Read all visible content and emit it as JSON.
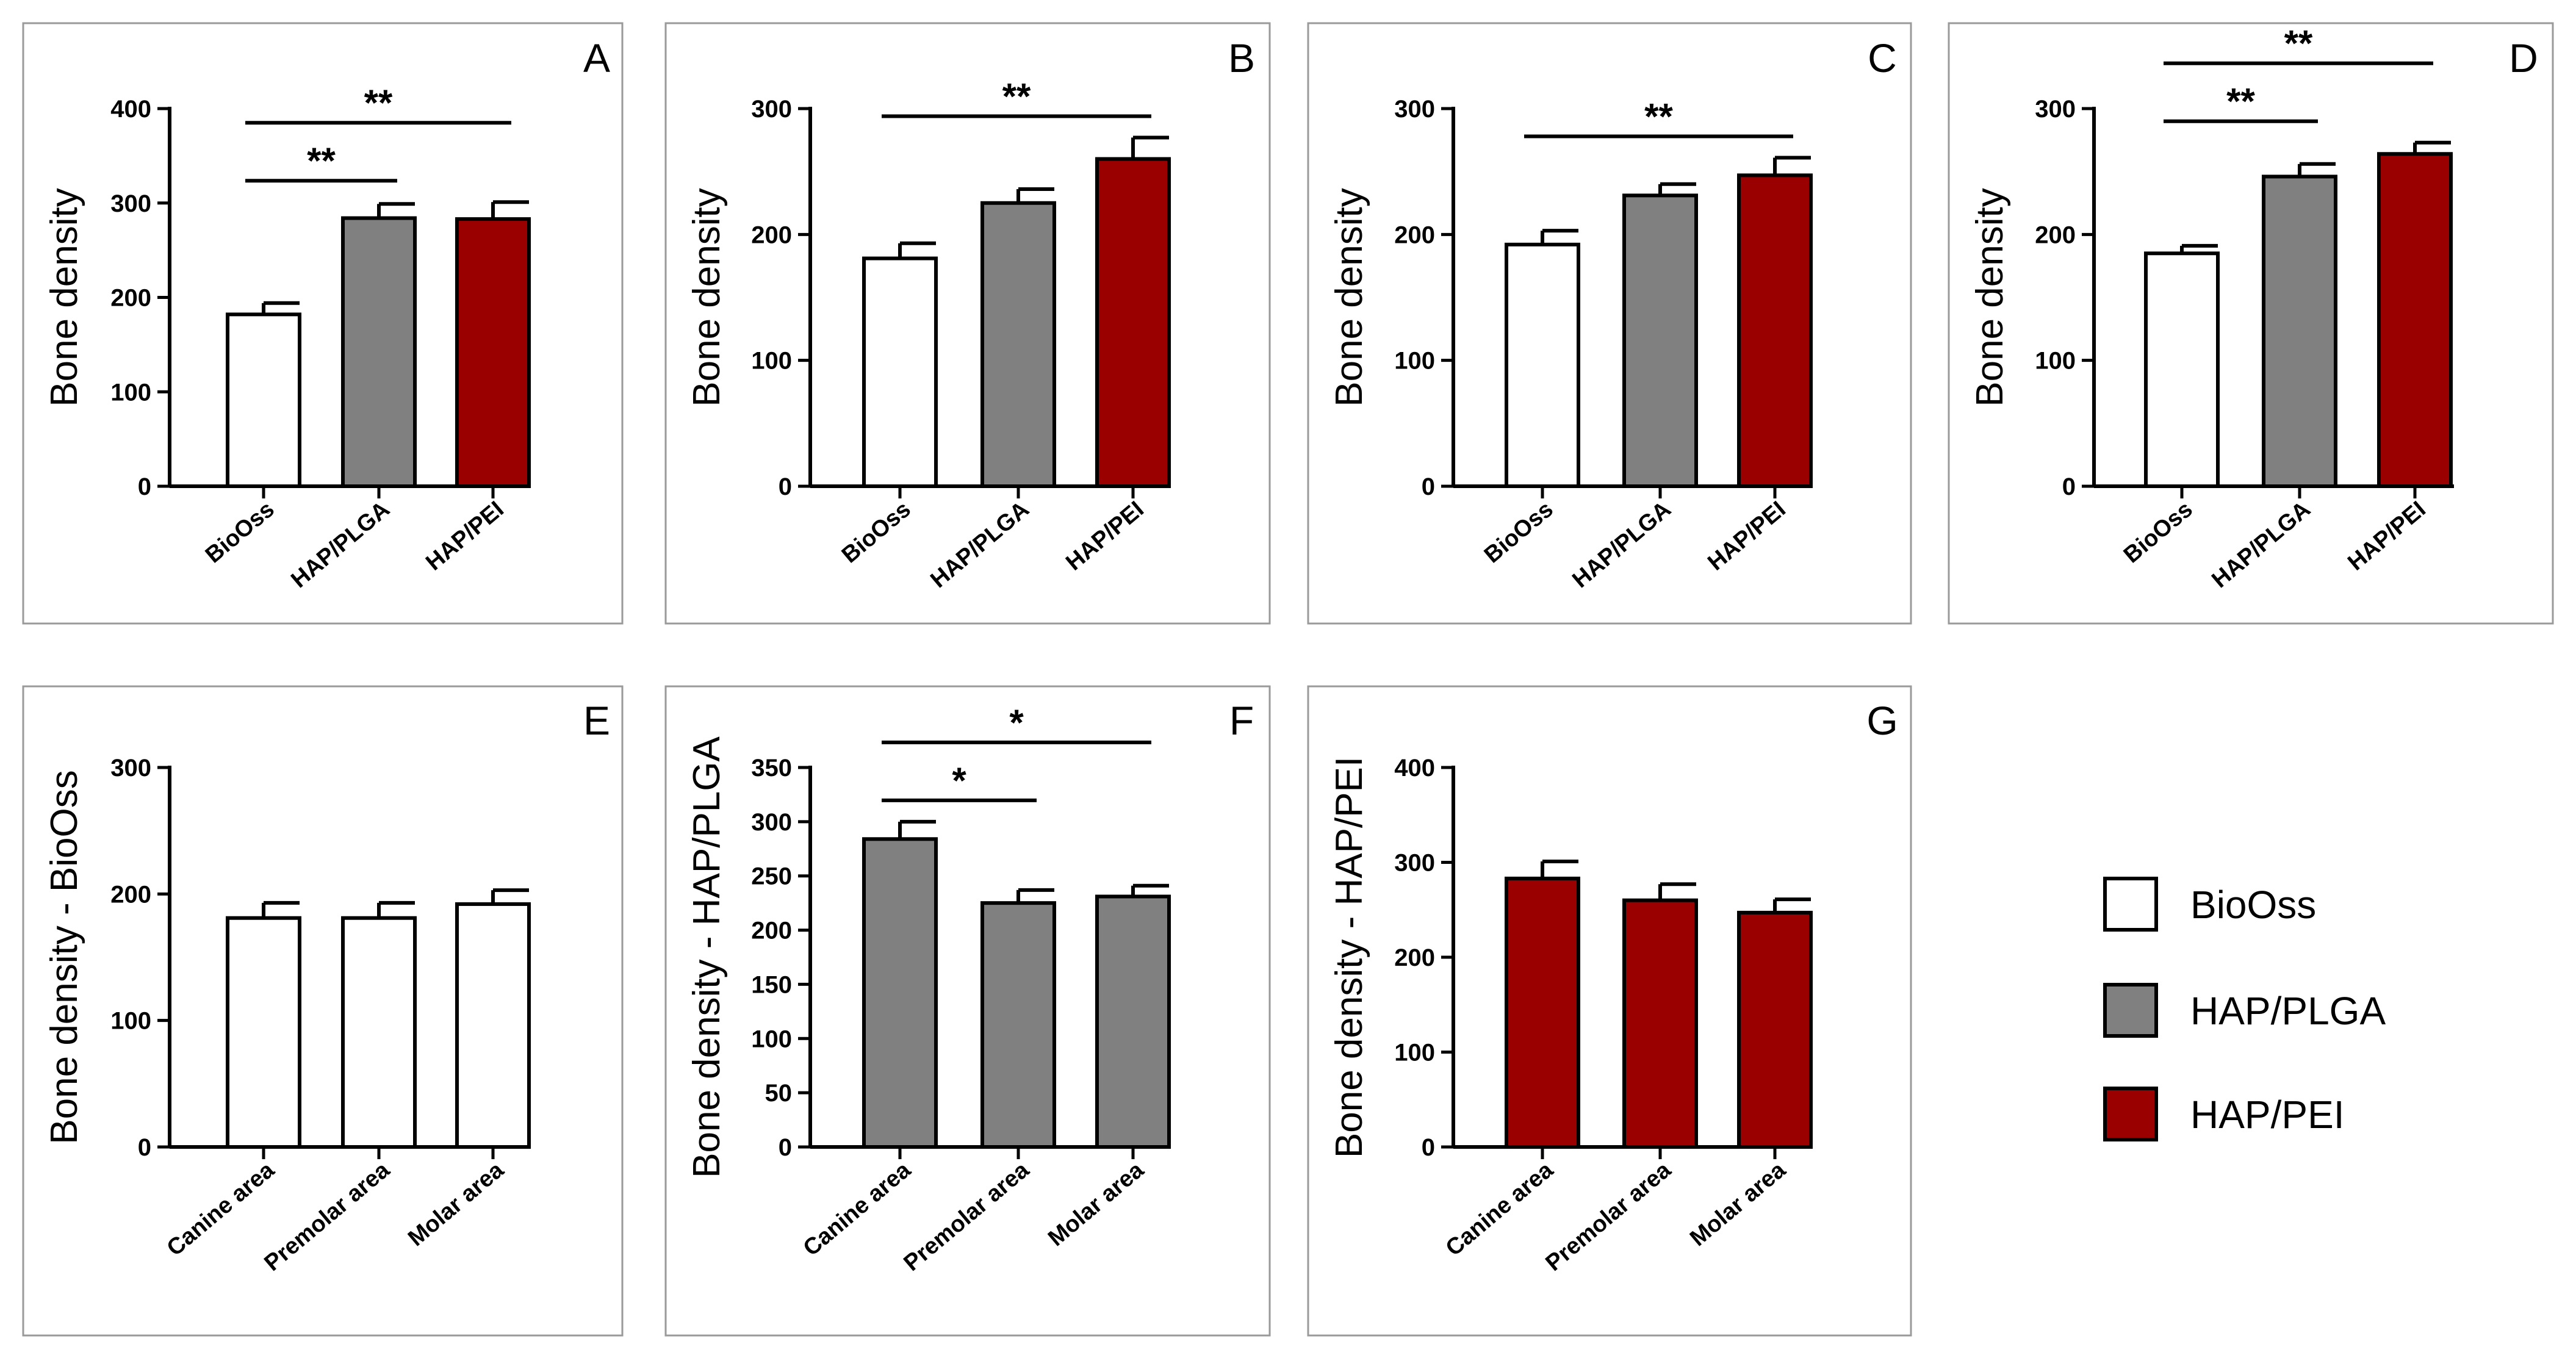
{
  "colors": {
    "BioOss": "#ffffff",
    "HAP/PLGA": "#808080",
    "HAP/PEI": "#9b0000"
  },
  "legend": {
    "items": [
      {
        "label": "BioOss",
        "color": "#ffffff"
      },
      {
        "label": "HAP/PLGA",
        "color": "#808080"
      },
      {
        "label": "HAP/PEI",
        "color": "#9b0000"
      }
    ]
  },
  "chart_data": [
    {
      "panel": "A",
      "type": "bar",
      "ylabel": "Bone density",
      "categories": [
        "BioOss",
        "HAP/PLGA",
        "HAP/PEI"
      ],
      "values": [
        182,
        284,
        283
      ],
      "errors": [
        12,
        15,
        18
      ],
      "colors": [
        "#ffffff",
        "#808080",
        "#9b0000"
      ],
      "ylim": [
        0,
        400
      ],
      "yticks": [
        0,
        100,
        200,
        300,
        400
      ],
      "significance": [
        {
          "from": 0,
          "to": 1,
          "label": "**"
        },
        {
          "from": 0,
          "to": 2,
          "label": "**"
        }
      ]
    },
    {
      "panel": "B",
      "type": "bar",
      "ylabel": "Bone density",
      "categories": [
        "BioOss",
        "HAP/PLGA",
        "HAP/PEI"
      ],
      "values": [
        181,
        225,
        260
      ],
      "errors": [
        12,
        11,
        17
      ],
      "colors": [
        "#ffffff",
        "#808080",
        "#9b0000"
      ],
      "ylim": [
        0,
        300
      ],
      "yticks": [
        0,
        100,
        200,
        300
      ],
      "significance": [
        {
          "from": 0,
          "to": 2,
          "label": "**"
        }
      ]
    },
    {
      "panel": "C",
      "type": "bar",
      "ylabel": "Bone density",
      "categories": [
        "BioOss",
        "HAP/PLGA",
        "HAP/PEI"
      ],
      "values": [
        192,
        231,
        247
      ],
      "errors": [
        11,
        9,
        14
      ],
      "colors": [
        "#ffffff",
        "#808080",
        "#9b0000"
      ],
      "ylim": [
        0,
        300
      ],
      "yticks": [
        0,
        100,
        200,
        300
      ],
      "significance": [
        {
          "from": 0,
          "to": 2,
          "label": "**"
        }
      ]
    },
    {
      "panel": "D",
      "type": "bar",
      "ylabel": "Bone density",
      "categories": [
        "BioOss",
        "HAP/PLGA",
        "HAP/PEI"
      ],
      "values": [
        185,
        246,
        264
      ],
      "errors": [
        6,
        10,
        9
      ],
      "colors": [
        "#ffffff",
        "#808080",
        "#9b0000"
      ],
      "ylim": [
        0,
        300
      ],
      "yticks": [
        0,
        100,
        200,
        300
      ],
      "significance": [
        {
          "from": 0,
          "to": 1,
          "label": "**"
        },
        {
          "from": 0,
          "to": 2,
          "label": "**"
        }
      ]
    },
    {
      "panel": "E",
      "type": "bar",
      "ylabel": "Bone density - BioOss",
      "categories": [
        "Canine area",
        "Premolar area",
        "Molar area"
      ],
      "values": [
        181,
        181,
        192
      ],
      "errors": [
        12,
        12,
        11
      ],
      "colors": [
        "#ffffff",
        "#ffffff",
        "#ffffff"
      ],
      "ylim": [
        0,
        300
      ],
      "yticks": [
        0,
        100,
        200,
        300
      ],
      "significance": []
    },
    {
      "panel": "F",
      "type": "bar",
      "ylabel": "Bone density - HAP/PLGA",
      "categories": [
        "Canine area",
        "Premolar area",
        "Molar area"
      ],
      "values": [
        284,
        225,
        231
      ],
      "errors": [
        16,
        12,
        10
      ],
      "colors": [
        "#808080",
        "#808080",
        "#808080"
      ],
      "ylim": [
        0,
        350
      ],
      "yticks": [
        0,
        50,
        100,
        150,
        200,
        250,
        300,
        350
      ],
      "significance": [
        {
          "from": 0,
          "to": 1,
          "label": "*"
        },
        {
          "from": 0,
          "to": 2,
          "label": "*"
        }
      ]
    },
    {
      "panel": "G",
      "type": "bar",
      "ylabel": "Bone density - HAP/PEI",
      "categories": [
        "Canine area",
        "Premolar area",
        "Molar area"
      ],
      "values": [
        283,
        260,
        247
      ],
      "errors": [
        18,
        17,
        14
      ],
      "colors": [
        "#9b0000",
        "#9b0000",
        "#9b0000"
      ],
      "ylim": [
        0,
        400
      ],
      "yticks": [
        0,
        100,
        200,
        300,
        400
      ],
      "significance": []
    }
  ]
}
